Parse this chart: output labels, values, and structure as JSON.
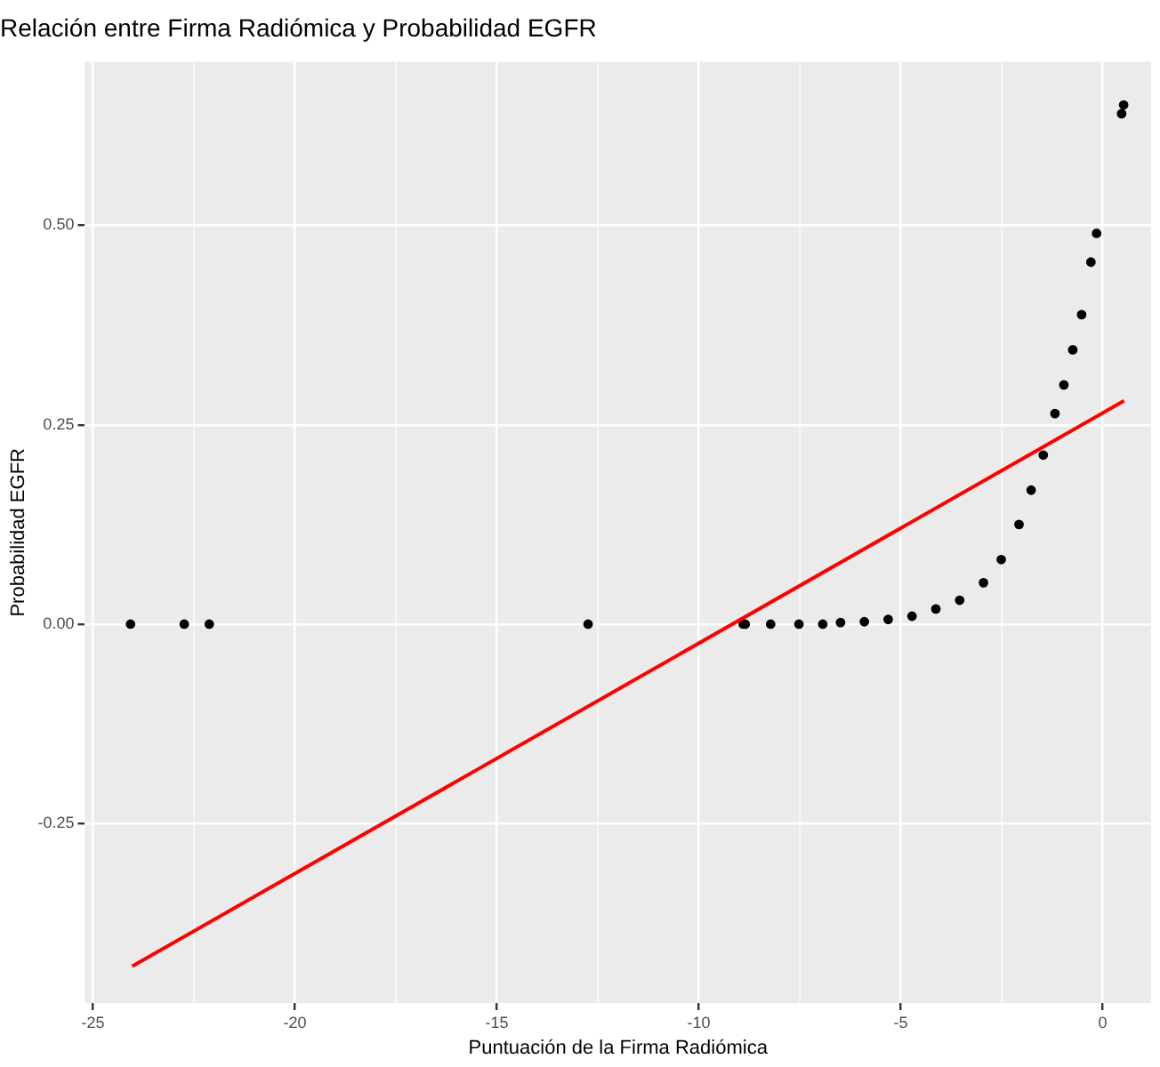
{
  "chart_data": {
    "type": "scatter",
    "title": "Relación entre Firma Radiómica y Probabilidad EGFR",
    "xlabel": "Puntuación de la Firma Radiómica",
    "ylabel": "Probabilidad EGFR",
    "xlim": [
      -25.2,
      1.2
    ],
    "xticks": [
      -25,
      -20,
      -15,
      -10,
      -5,
      0
    ],
    "ylim": [
      -0.475,
      0.705
    ],
    "yticks": [
      {
        "value": -0.25,
        "label": "-0.25"
      },
      {
        "value": 0,
        "label": "0.00"
      },
      {
        "value": 0.25,
        "label": "0.25"
      },
      {
        "value": 0.5,
        "label": "0.50"
      }
    ],
    "grid": true,
    "legend": false,
    "marker": "circle",
    "series": [
      {
        "type": "scatter",
        "color": "#000000",
        "x": [
          -24.07,
          -22.74,
          -22.12,
          -12.74,
          -8.9,
          -8.85,
          -8.22,
          -7.52,
          -6.93,
          -6.49,
          -5.9,
          -5.31,
          -4.72,
          -4.13,
          -3.54,
          -2.95,
          -2.51,
          -2.07,
          -1.77,
          -1.47,
          -1.18,
          -0.96,
          -0.74,
          -0.52,
          -0.29,
          -0.15,
          0.47,
          0.52
        ],
        "values": [
          0,
          0,
          0,
          0,
          0,
          0,
          0,
          0,
          0,
          0.002,
          0.003,
          0.006,
          0.01,
          0.019,
          0.03,
          0.052,
          0.081,
          0.125,
          0.168,
          0.212,
          0.264,
          0.3,
          0.344,
          0.388,
          0.454,
          0.49,
          0.64,
          0.651
        ]
      },
      {
        "type": "line",
        "color": "#ff0000",
        "x": [
          -24.03,
          0.53
        ],
        "values": [
          -0.429,
          0.28
        ],
        "marker": "none",
        "line_style": "solid"
      }
    ]
  }
}
